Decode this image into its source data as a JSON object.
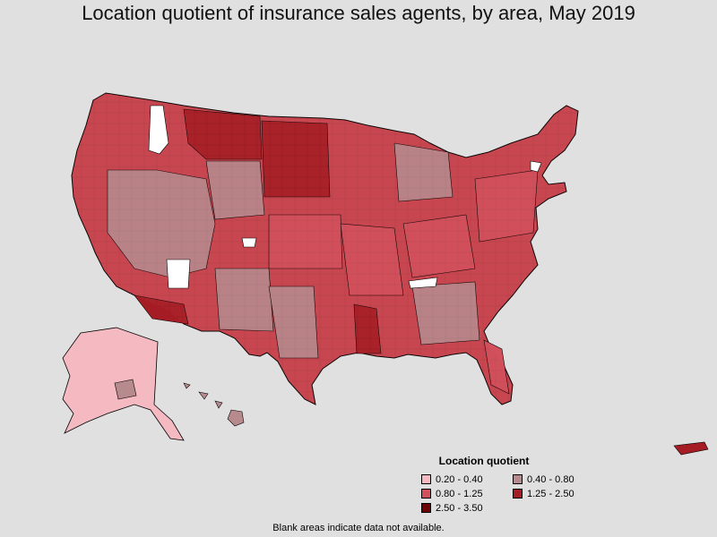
{
  "title": "Location quotient of insurance sales agents, by area, May 2019",
  "legend": {
    "title": "Location quotient",
    "items": [
      {
        "label": "0.20 - 0.40",
        "color": "#f4b9c1",
        "key": "c1"
      },
      {
        "label": "0.40 - 0.80",
        "color": "#b78a8d",
        "key": "c2"
      },
      {
        "label": "0.80 - 1.25",
        "color": "#d2505c",
        "key": "c3"
      },
      {
        "label": "1.25 - 2.50",
        "color": "#a51c24",
        "key": "c4"
      },
      {
        "label": "2.50 - 3.50",
        "color": "#6e0008",
        "key": "c5"
      }
    ]
  },
  "footnote": "Blank areas indicate data not available.",
  "colors": {
    "background": "#e0e0e0",
    "border": "#000000",
    "no_data": "#ffffff"
  }
}
